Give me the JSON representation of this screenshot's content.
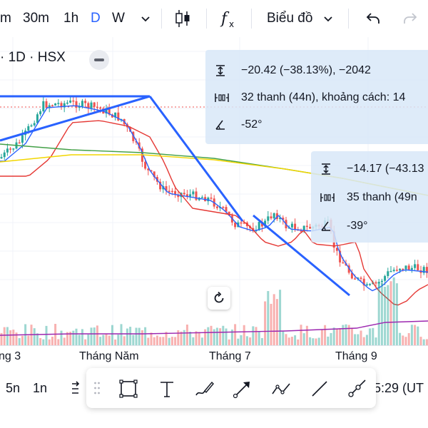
{
  "toolbar": {
    "intervals": [
      "m",
      "30m",
      "1h",
      "D",
      "W"
    ],
    "active_interval": "D",
    "chart_type_label": "Biểu đồ",
    "icons": [
      "chevron-down-icon",
      "candlestick-icon",
      "indicators-fx-icon",
      "undo-icon",
      "redo-icon"
    ]
  },
  "chart": {
    "symbol_title": "· 1D · HSX",
    "measure_1": {
      "price_change": "−20.42 (−38.13%), −2042",
      "bars_range": "32 thanh (44n), khoảng cách: 14",
      "angle": "-52°"
    },
    "measure_2": {
      "price_change": "−14.17 (−43.13",
      "bars_range": "35 thanh (49n",
      "angle": "-39°"
    },
    "colors": {
      "up": "#26a69a",
      "down": "#ef5350",
      "trendline": "#2962ff",
      "ma_short": "#2962ff",
      "ma_red": "#e53935",
      "ma_green": "#43a047",
      "ma_yellow": "#f2d600",
      "ma_purple": "#9c27b0",
      "measure_fill": "#d8e8f8"
    }
  },
  "time_axis": {
    "labels": [
      "ng 3",
      "Tháng Năm",
      "Tháng 7",
      "Tháng 9"
    ]
  },
  "bottom": {
    "range_5n": "5n",
    "range_1n": "1n",
    "clock": "5:29 (UT"
  }
}
